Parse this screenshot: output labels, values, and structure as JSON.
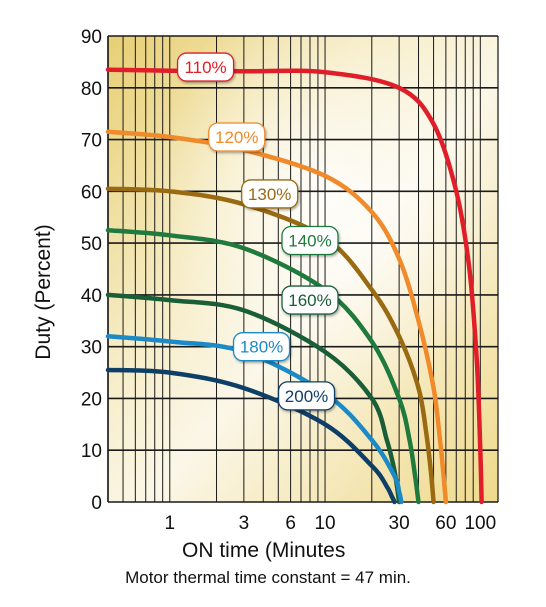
{
  "chart_data": {
    "type": "line",
    "title": "",
    "xlabel": "ON time  (Minutes",
    "ylabel": "Duty  (Percent)",
    "note": "Motor thermal time constant = 47 min.",
    "x_scale": "log",
    "xlim": [
      0.4,
      130
    ],
    "ylim": [
      0,
      90
    ],
    "x_ticks": [
      {
        "value": 1,
        "label": "1"
      },
      {
        "value": 3,
        "label": "3"
      },
      {
        "value": 6,
        "label": "6"
      },
      {
        "value": 10,
        "label": "10"
      },
      {
        "value": 30,
        "label": "30"
      },
      {
        "value": 60,
        "label": "60"
      },
      {
        "value": 100,
        "label": "100"
      }
    ],
    "y_ticks": [
      0,
      10,
      20,
      30,
      40,
      50,
      60,
      70,
      80,
      90
    ],
    "grid": true,
    "series": [
      {
        "name": "110%",
        "color": "#e01e2a",
        "x": [
          0.4,
          1,
          3,
          10,
          30,
          50,
          70,
          85,
          95,
          100,
          102
        ],
        "y": [
          83.5,
          83.3,
          83.2,
          83,
          80,
          73,
          60,
          45,
          27,
          10,
          0
        ]
      },
      {
        "name": "120%",
        "color": "#f08a2a",
        "x": [
          0.4,
          1,
          3,
          10,
          20,
          30,
          40,
          50,
          55,
          58,
          60
        ],
        "y": [
          71.5,
          70.5,
          68,
          63,
          56,
          47,
          35,
          22,
          12,
          5,
          0
        ]
      },
      {
        "name": "130%",
        "color": "#9a6a12",
        "x": [
          0.4,
          1,
          3,
          10,
          20,
          30,
          40,
          45,
          48,
          50
        ],
        "y": [
          60.5,
          60,
          57.5,
          51,
          41,
          32,
          22,
          13,
          6,
          0
        ]
      },
      {
        "name": "140%",
        "color": "#1f7a3e",
        "x": [
          0.4,
          1,
          3,
          10,
          20,
          30,
          35,
          38,
          40
        ],
        "y": [
          52.5,
          51.5,
          49,
          41,
          31,
          20,
          12,
          5,
          0
        ]
      },
      {
        "name": "160%",
        "color": "#1a5e38",
        "x": [
          0.4,
          1,
          3,
          10,
          20,
          25,
          28,
          30
        ],
        "y": [
          40,
          39,
          37,
          29,
          20,
          12,
          6,
          0
        ]
      },
      {
        "name": "180%",
        "color": "#1c8ac6",
        "x": [
          0.4,
          1,
          3,
          10,
          20,
          28,
          30,
          31
        ],
        "y": [
          32,
          31,
          29,
          21,
          12,
          5,
          2,
          0
        ]
      },
      {
        "name": "200%",
        "color": "#0f3f66",
        "x": [
          0.4,
          1,
          3,
          10,
          20,
          25,
          27,
          28
        ],
        "y": [
          25.5,
          25,
          22,
          15,
          7,
          3,
          1,
          0
        ]
      }
    ],
    "labels": [
      {
        "series": "110%",
        "text": "110%",
        "x": 1.7,
        "y": 84
      },
      {
        "series": "120%",
        "text": "120%",
        "x": 2.7,
        "y": 70.5
      },
      {
        "series": "130%",
        "text": "130%",
        "x": 4.4,
        "y": 59.5
      },
      {
        "series": "140%",
        "text": "140%",
        "x": 8.0,
        "y": 50.5
      },
      {
        "series": "160%",
        "text": "160%",
        "x": 8.0,
        "y": 39
      },
      {
        "series": "180%",
        "text": "180%",
        "x": 3.9,
        "y": 30
      },
      {
        "series": "200%",
        "text": "200%",
        "x": 7.6,
        "y": 20.5
      }
    ]
  }
}
